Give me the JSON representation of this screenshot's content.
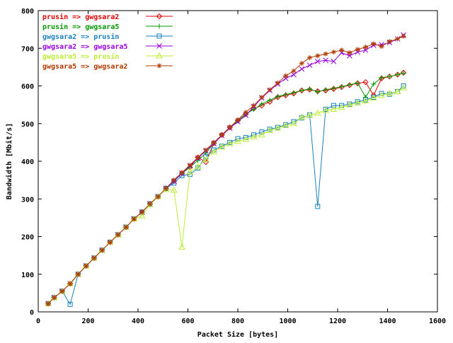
{
  "chart_data": {
    "type": "line",
    "xlabel": "Packet Size [bytes]",
    "ylabel": "Bandwidth [Mbit/s]",
    "xlim": [
      0,
      1600
    ],
    "ylim": [
      0,
      800
    ],
    "xticks": [
      0,
      200,
      400,
      600,
      800,
      1000,
      1200,
      1400,
      1600
    ],
    "yticks": [
      0,
      100,
      200,
      300,
      400,
      500,
      600,
      700,
      800
    ],
    "grid": false,
    "legend_position": "top-left",
    "series": [
      {
        "name": "prusin => gwgsara2",
        "color": "#dd0000",
        "marker": "diamond",
        "points": [
          [
            40,
            22
          ],
          [
            64,
            38
          ],
          [
            96,
            55
          ],
          [
            128,
            75
          ],
          [
            160,
            100
          ],
          [
            192,
            122
          ],
          [
            224,
            143
          ],
          [
            256,
            164
          ],
          [
            288,
            185
          ],
          [
            320,
            205
          ],
          [
            352,
            225
          ],
          [
            384,
            247
          ],
          [
            416,
            265
          ],
          [
            448,
            287
          ],
          [
            480,
            306
          ],
          [
            512,
            328
          ],
          [
            544,
            347
          ],
          [
            576,
            368
          ],
          [
            608,
            384
          ],
          [
            640,
            410
          ],
          [
            672,
            398
          ],
          [
            704,
            448
          ],
          [
            736,
            470
          ],
          [
            768,
            490
          ],
          [
            800,
            508
          ],
          [
            832,
            525
          ],
          [
            864,
            540
          ],
          [
            896,
            548
          ],
          [
            928,
            558
          ],
          [
            960,
            570
          ],
          [
            992,
            575
          ],
          [
            1024,
            580
          ],
          [
            1056,
            588
          ],
          [
            1088,
            590
          ],
          [
            1120,
            586
          ],
          [
            1152,
            588
          ],
          [
            1184,
            592
          ],
          [
            1216,
            597
          ],
          [
            1248,
            602
          ],
          [
            1280,
            607
          ],
          [
            1312,
            610
          ],
          [
            1344,
            575
          ],
          [
            1376,
            620
          ],
          [
            1408,
            625
          ],
          [
            1440,
            630
          ],
          [
            1464,
            635
          ]
        ]
      },
      {
        "name": "prusin => gwgsara5",
        "color": "#009900",
        "marker": "plus",
        "points": [
          [
            40,
            22
          ],
          [
            64,
            38
          ],
          [
            96,
            55
          ],
          [
            128,
            75
          ],
          [
            160,
            100
          ],
          [
            192,
            122
          ],
          [
            224,
            143
          ],
          [
            256,
            164
          ],
          [
            288,
            185
          ],
          [
            320,
            205
          ],
          [
            352,
            225
          ],
          [
            384,
            247
          ],
          [
            416,
            265
          ],
          [
            448,
            287
          ],
          [
            480,
            306
          ],
          [
            512,
            328
          ],
          [
            544,
            347
          ],
          [
            576,
            368
          ],
          [
            608,
            384
          ],
          [
            640,
            402
          ],
          [
            672,
            422
          ],
          [
            704,
            447
          ],
          [
            736,
            470
          ],
          [
            768,
            490
          ],
          [
            800,
            507
          ],
          [
            832,
            525
          ],
          [
            864,
            538
          ],
          [
            896,
            552
          ],
          [
            928,
            562
          ],
          [
            960,
            572
          ],
          [
            992,
            577
          ],
          [
            1024,
            582
          ],
          [
            1056,
            588
          ],
          [
            1088,
            592
          ],
          [
            1120,
            584
          ],
          [
            1152,
            590
          ],
          [
            1184,
            594
          ],
          [
            1216,
            598
          ],
          [
            1248,
            603
          ],
          [
            1280,
            608
          ],
          [
            1312,
            570
          ],
          [
            1344,
            605
          ],
          [
            1376,
            622
          ],
          [
            1408,
            625
          ],
          [
            1440,
            630
          ],
          [
            1464,
            634
          ]
        ]
      },
      {
        "name": "gwgsara2 => prusin",
        "color": "#1a80c0",
        "marker": "square",
        "points": [
          [
            40,
            22
          ],
          [
            64,
            38
          ],
          [
            96,
            55
          ],
          [
            128,
            20
          ],
          [
            160,
            100
          ],
          [
            192,
            122
          ],
          [
            224,
            143
          ],
          [
            256,
            164
          ],
          [
            288,
            185
          ],
          [
            320,
            205
          ],
          [
            352,
            225
          ],
          [
            384,
            247
          ],
          [
            416,
            265
          ],
          [
            448,
            287
          ],
          [
            480,
            306
          ],
          [
            512,
            328
          ],
          [
            544,
            342
          ],
          [
            576,
            362
          ],
          [
            608,
            365
          ],
          [
            640,
            382
          ],
          [
            672,
            412
          ],
          [
            704,
            430
          ],
          [
            736,
            440
          ],
          [
            768,
            450
          ],
          [
            800,
            460
          ],
          [
            832,
            463
          ],
          [
            864,
            470
          ],
          [
            896,
            478
          ],
          [
            928,
            485
          ],
          [
            960,
            490
          ],
          [
            992,
            497
          ],
          [
            1024,
            505
          ],
          [
            1056,
            515
          ],
          [
            1088,
            523
          ],
          [
            1120,
            280
          ],
          [
            1152,
            538
          ],
          [
            1184,
            548
          ],
          [
            1216,
            548
          ],
          [
            1248,
            552
          ],
          [
            1280,
            558
          ],
          [
            1312,
            563
          ],
          [
            1344,
            570
          ],
          [
            1376,
            580
          ],
          [
            1408,
            578
          ],
          [
            1440,
            585
          ],
          [
            1464,
            600
          ]
        ]
      },
      {
        "name": "gwgsara2 => gwgsara5",
        "color": "#9900dd",
        "marker": "x",
        "points": [
          [
            40,
            22
          ],
          [
            64,
            38
          ],
          [
            96,
            55
          ],
          [
            128,
            75
          ],
          [
            160,
            100
          ],
          [
            192,
            122
          ],
          [
            224,
            143
          ],
          [
            256,
            164
          ],
          [
            288,
            185
          ],
          [
            320,
            205
          ],
          [
            352,
            225
          ],
          [
            384,
            247
          ],
          [
            416,
            265
          ],
          [
            448,
            287
          ],
          [
            480,
            306
          ],
          [
            512,
            328
          ],
          [
            544,
            347
          ],
          [
            576,
            368
          ],
          [
            608,
            388
          ],
          [
            640,
            408
          ],
          [
            672,
            428
          ],
          [
            704,
            447
          ],
          [
            736,
            468
          ],
          [
            768,
            488
          ],
          [
            800,
            505
          ],
          [
            832,
            522
          ],
          [
            864,
            545
          ],
          [
            896,
            568
          ],
          [
            928,
            588
          ],
          [
            960,
            605
          ],
          [
            992,
            620
          ],
          [
            1024,
            630
          ],
          [
            1056,
            645
          ],
          [
            1088,
            655
          ],
          [
            1120,
            665
          ],
          [
            1152,
            668
          ],
          [
            1184,
            665
          ],
          [
            1216,
            688
          ],
          [
            1248,
            680
          ],
          [
            1280,
            690
          ],
          [
            1312,
            695
          ],
          [
            1344,
            708
          ],
          [
            1376,
            710
          ],
          [
            1408,
            715
          ],
          [
            1440,
            725
          ],
          [
            1464,
            735
          ]
        ]
      },
      {
        "name": "gwgsara5 => prusin",
        "color": "#bbee33",
        "marker": "triangle",
        "points": [
          [
            40,
            22
          ],
          [
            64,
            38
          ],
          [
            96,
            55
          ],
          [
            128,
            75
          ],
          [
            160,
            100
          ],
          [
            192,
            122
          ],
          [
            224,
            143
          ],
          [
            256,
            164
          ],
          [
            288,
            185
          ],
          [
            320,
            205
          ],
          [
            352,
            225
          ],
          [
            384,
            247
          ],
          [
            416,
            255
          ],
          [
            448,
            285
          ],
          [
            480,
            306
          ],
          [
            512,
            325
          ],
          [
            544,
            323
          ],
          [
            576,
            172
          ],
          [
            608,
            372
          ],
          [
            640,
            385
          ],
          [
            672,
            405
          ],
          [
            704,
            425
          ],
          [
            736,
            438
          ],
          [
            768,
            447
          ],
          [
            800,
            453
          ],
          [
            832,
            458
          ],
          [
            864,
            465
          ],
          [
            896,
            470
          ],
          [
            928,
            482
          ],
          [
            960,
            488
          ],
          [
            992,
            495
          ],
          [
            1024,
            500
          ],
          [
            1056,
            517
          ],
          [
            1088,
            522
          ],
          [
            1120,
            528
          ],
          [
            1152,
            535
          ],
          [
            1184,
            538
          ],
          [
            1216,
            543
          ],
          [
            1248,
            550
          ],
          [
            1280,
            555
          ],
          [
            1312,
            560
          ],
          [
            1344,
            568
          ],
          [
            1376,
            575
          ],
          [
            1408,
            580
          ],
          [
            1440,
            585
          ],
          [
            1464,
            595
          ]
        ]
      },
      {
        "name": "gwgsara5 => gwgsara2",
        "color": "#b03a00",
        "marker": "star",
        "points": [
          [
            40,
            22
          ],
          [
            64,
            38
          ],
          [
            96,
            55
          ],
          [
            128,
            75
          ],
          [
            160,
            100
          ],
          [
            192,
            122
          ],
          [
            224,
            143
          ],
          [
            256,
            164
          ],
          [
            288,
            185
          ],
          [
            320,
            205
          ],
          [
            352,
            225
          ],
          [
            384,
            247
          ],
          [
            416,
            265
          ],
          [
            448,
            287
          ],
          [
            480,
            306
          ],
          [
            512,
            328
          ],
          [
            544,
            350
          ],
          [
            576,
            370
          ],
          [
            608,
            390
          ],
          [
            640,
            410
          ],
          [
            672,
            430
          ],
          [
            704,
            450
          ],
          [
            736,
            470
          ],
          [
            768,
            490
          ],
          [
            800,
            510
          ],
          [
            832,
            530
          ],
          [
            864,
            548
          ],
          [
            896,
            570
          ],
          [
            928,
            590
          ],
          [
            960,
            608
          ],
          [
            992,
            627
          ],
          [
            1024,
            640
          ],
          [
            1056,
            660
          ],
          [
            1088,
            675
          ],
          [
            1120,
            680
          ],
          [
            1152,
            685
          ],
          [
            1184,
            690
          ],
          [
            1216,
            695
          ],
          [
            1248,
            688
          ],
          [
            1280,
            697
          ],
          [
            1312,
            703
          ],
          [
            1344,
            712
          ],
          [
            1376,
            705
          ],
          [
            1408,
            718
          ],
          [
            1440,
            725
          ],
          [
            1464,
            732
          ]
        ]
      }
    ]
  }
}
